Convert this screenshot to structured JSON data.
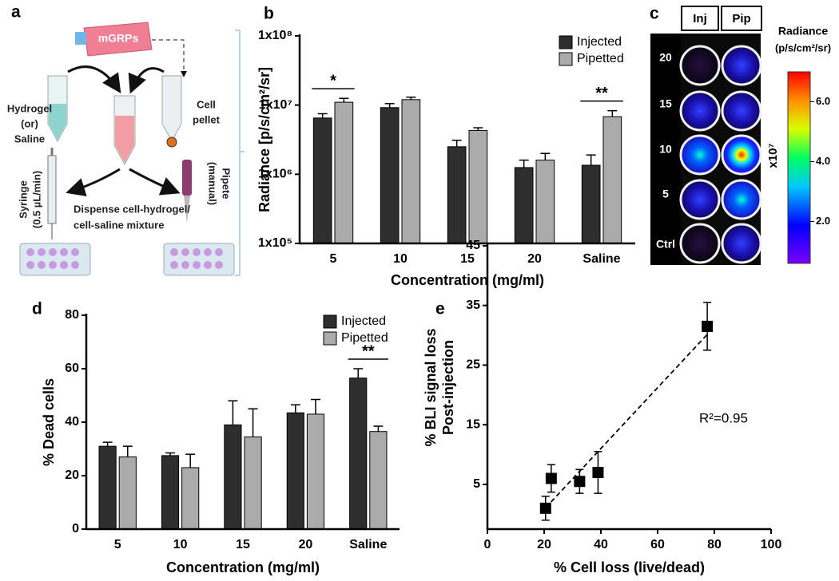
{
  "diagram": {
    "panel_label": "a",
    "flask": "mGRPs",
    "left_tube": [
      "Hydrogel",
      "(or)",
      "Saline"
    ],
    "right_tube": [
      "Cell",
      "pellet"
    ],
    "syringe": [
      "Syringe",
      "(0.5 µL/min)"
    ],
    "pipette": [
      "Pipete",
      "(manual)"
    ],
    "dispense": [
      "Dispense cell-hydrogel/",
      "cell-saline mixture"
    ]
  },
  "image_panel": {
    "panel_label": "c",
    "columns": [
      "Inj",
      "Pip"
    ],
    "rows": [
      "20",
      "15",
      "10",
      "5",
      "Ctrl"
    ],
    "colorbar": {
      "title": "Radiance",
      "unit": "(p/s/cm²/sr)",
      "multiplier": "x10⁷",
      "clim": [
        0.6,
        7.0
      ],
      "ticks": [
        {
          "value": 2,
          "label": "2.0"
        },
        {
          "value": 4,
          "label": "4.0"
        },
        {
          "value": 6,
          "label": "6.0"
        }
      ]
    }
  },
  "chart_data": [
    {
      "type": "bar",
      "panel_label": "b",
      "x_label": "Concentration (mg/ml)",
      "y_label": "Radiance [p/s/cm²/sr]",
      "categories": [
        "5",
        "10",
        "15",
        "20",
        "Saline"
      ],
      "series": [
        {
          "name": "Injected",
          "color": "#2e2e2e",
          "values": [
            6500000,
            9200000,
            2500000,
            1250000,
            1350000
          ],
          "errors": [
            1000000,
            1300000,
            600000,
            350000,
            550000
          ]
        },
        {
          "name": "Pipetted",
          "color": "#ababab",
          "values": [
            11000000,
            12000000,
            4300000,
            1600000,
            6800000
          ],
          "errors": [
            1500000,
            1000000,
            400000,
            400000,
            1500000
          ]
        }
      ],
      "log_scale": true,
      "ylim": [
        100000,
        100000000
      ],
      "yticks": [
        {
          "value": 100000,
          "label": "1x10⁵"
        },
        {
          "value": 1000000,
          "label": "1x10⁶"
        },
        {
          "value": 10000000,
          "label": "1x10⁷"
        },
        {
          "value": 100000000,
          "label": "1x10⁸"
        }
      ],
      "legend": "top-right",
      "annotations": [
        {
          "label": "*",
          "category": "5"
        },
        {
          "label": "**",
          "category": "Saline"
        }
      ]
    },
    {
      "type": "bar",
      "panel_label": "d",
      "x_label": "Concentration (mg/ml)",
      "y_label": "% Dead cells",
      "categories": [
        "5",
        "10",
        "15",
        "20",
        "Saline"
      ],
      "series": [
        {
          "name": "Injected",
          "color": "#2e2e2e",
          "values": [
            31,
            27.5,
            39,
            43.5,
            56.5
          ],
          "errors": [
            1.5,
            1,
            9,
            3,
            3.5
          ]
        },
        {
          "name": "Pipetted",
          "color": "#ababab",
          "values": [
            27,
            23,
            34.5,
            43,
            36.5
          ],
          "errors": [
            4,
            5,
            10.5,
            5.5,
            2
          ]
        }
      ],
      "log_scale": false,
      "ylim": [
        0,
        80
      ],
      "yticks": [
        0,
        20,
        40,
        60,
        80
      ],
      "legend": "top-right",
      "annotations": [
        {
          "label": "**",
          "category": "Saline"
        }
      ]
    },
    {
      "type": "scatter",
      "panel_label": "e",
      "x_label": "% Cell loss (live/dead)",
      "y_label": [
        "% BLI signal loss",
        "Post-injection"
      ],
      "x": [
        20.5,
        22.5,
        32.5,
        39,
        77.5
      ],
      "y": [
        1,
        6,
        5.5,
        7,
        31.5
      ],
      "y_errors": [
        2,
        2.3,
        2,
        3.5,
        4
      ],
      "color": "#000000",
      "xlim": [
        0,
        100
      ],
      "xticks": [
        0,
        20,
        40,
        60,
        80,
        100
      ],
      "ylim": [
        -2.5,
        45
      ],
      "yticks": [
        5,
        15,
        25,
        35,
        45
      ],
      "trendline": "linear",
      "annotations": [
        {
          "label": "R²=0.95"
        }
      ]
    }
  ]
}
